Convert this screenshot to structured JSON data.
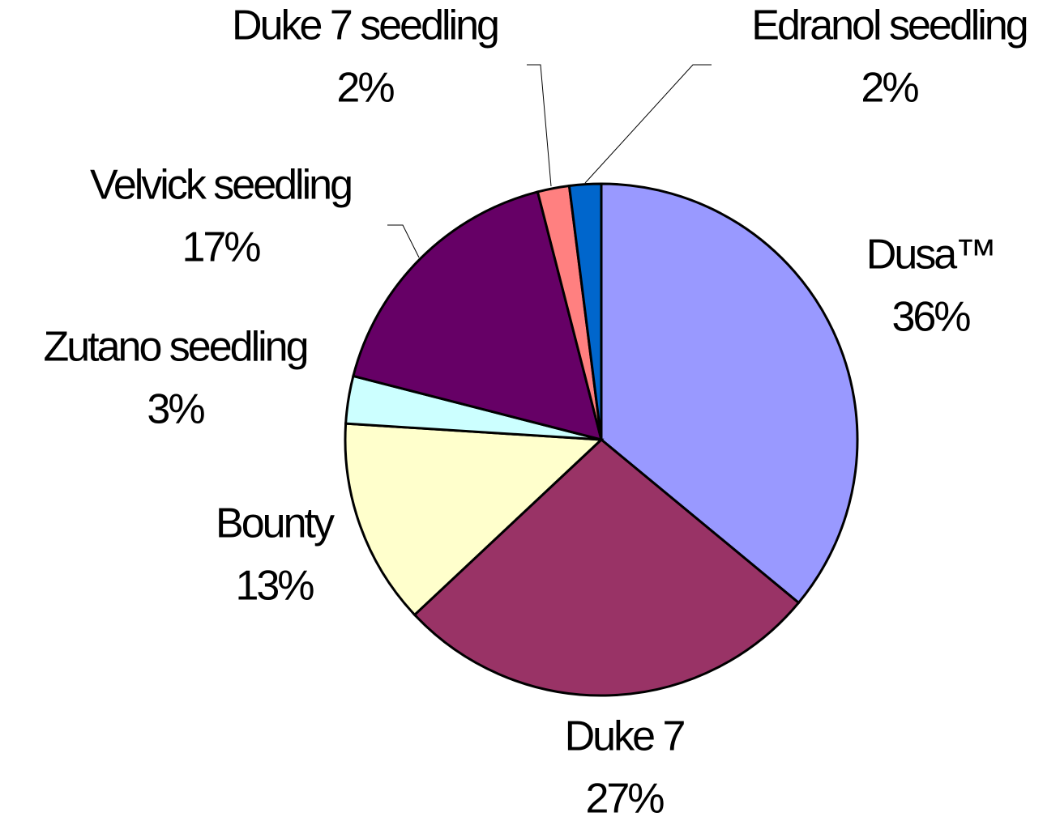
{
  "chart_data": {
    "type": "pie",
    "categories": [
      "Dusa™",
      "Duke 7",
      "Bounty",
      "Zutano seedling",
      "Velvick seedling",
      "Duke 7 seedling",
      "Edranol seedling"
    ],
    "values": [
      36,
      27,
      13,
      3,
      17,
      2,
      2
    ],
    "value_labels": [
      "36%",
      "27%",
      "13%",
      "3%",
      "17%",
      "2%",
      "2%"
    ],
    "colors": [
      "#9999ff",
      "#993366",
      "#ffffcc",
      "#ccffff",
      "#660066",
      "#ff8080",
      "#0066cc"
    ]
  }
}
